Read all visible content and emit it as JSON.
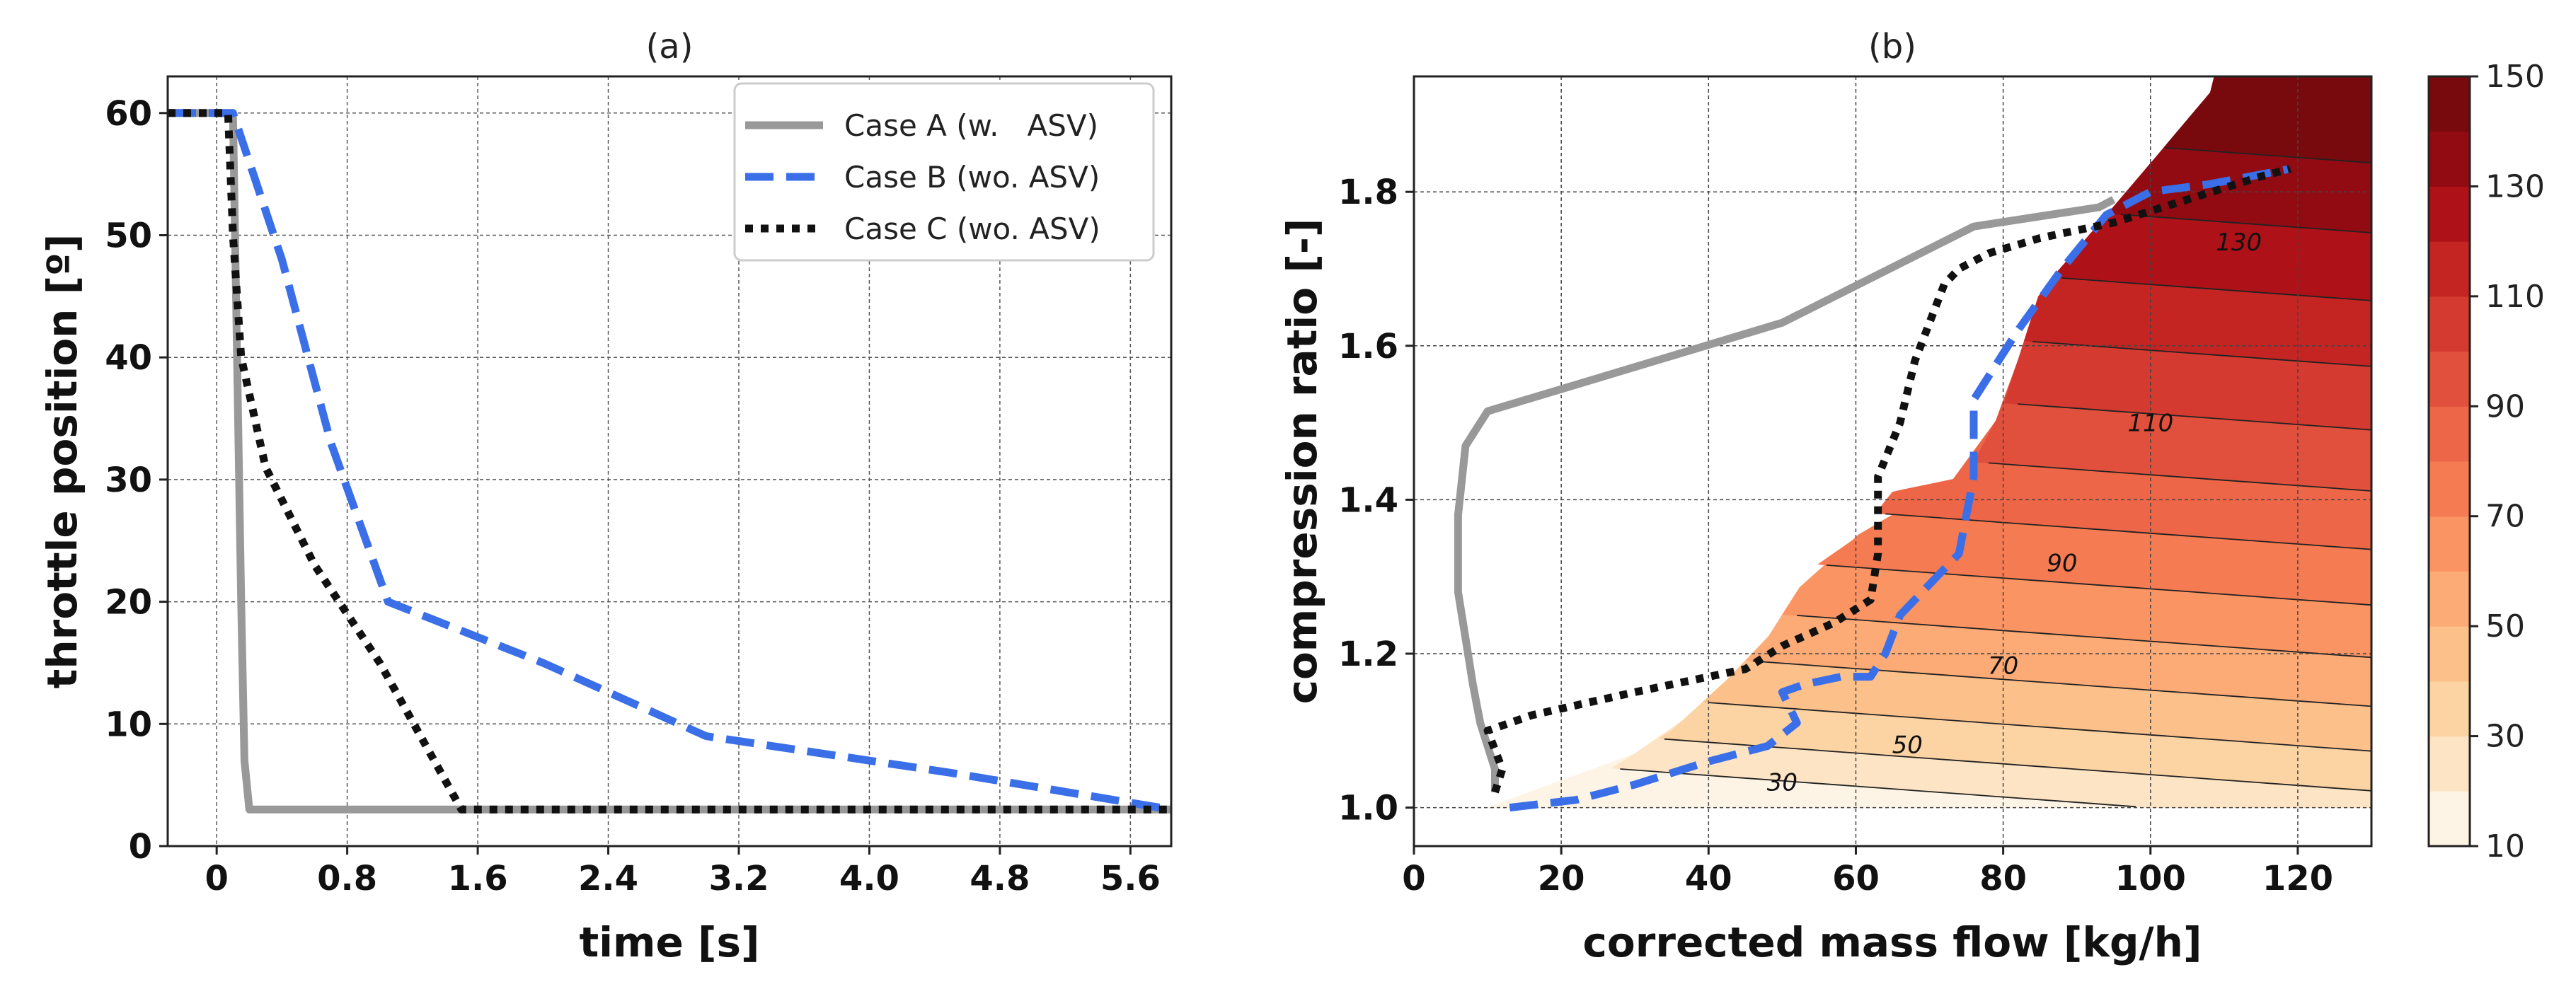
{
  "chart_data": [
    {
      "id": "a",
      "type": "line",
      "title": "(a)",
      "xlabel": "time [s]",
      "ylabel": "throttle position [º]",
      "xlim": [
        -0.3,
        5.85
      ],
      "ylim": [
        0,
        63
      ],
      "xticks": [
        0,
        0.8,
        1.6,
        2.4,
        3.2,
        4.0,
        4.8,
        5.6
      ],
      "xtick_labels": [
        "0",
        "0.8",
        "1.6",
        "2.4",
        "3.2",
        "4.0",
        "4.8",
        "5.6"
      ],
      "yticks": [
        0,
        10,
        20,
        30,
        40,
        50,
        60
      ],
      "ytick_labels": [
        "0",
        "10",
        "20",
        "30",
        "40",
        "50",
        "60"
      ],
      "grid": true,
      "legend_position": "top-right",
      "series": [
        {
          "name": "Case A (w.   ASV)",
          "style": "solid",
          "color": "#999999",
          "x": [
            -0.3,
            0.1,
            0.15,
            0.17,
            0.2,
            5.85
          ],
          "y": [
            60,
            60,
            20,
            7,
            3,
            3
          ]
        },
        {
          "name": "Case B (wo. ASV)",
          "style": "dashed",
          "color": "#3a6fe8",
          "x": [
            -0.3,
            0.1,
            0.4,
            0.7,
            1.05,
            2.0,
            3.0,
            4.5,
            5.85
          ],
          "y": [
            60,
            60,
            48,
            33,
            20,
            15,
            9,
            6,
            3
          ]
        },
        {
          "name": "Case C (wo. ASV)",
          "style": "dotted",
          "color": "#111111",
          "x": [
            -0.3,
            0.07,
            0.1,
            0.15,
            0.3,
            0.6,
            1.0,
            1.5,
            5.85
          ],
          "y": [
            60,
            60,
            50,
            40,
            31,
            23,
            15,
            3,
            3
          ]
        }
      ]
    },
    {
      "id": "b",
      "type": "contour",
      "title": "(b)",
      "xlabel": "corrected mass flow [kg/h]",
      "ylabel": "compression ratio [-]",
      "xlim": [
        0,
        130
      ],
      "ylim": [
        0.95,
        1.95
      ],
      "xticks": [
        0,
        20,
        40,
        60,
        80,
        100,
        120
      ],
      "xtick_labels": [
        "0",
        "20",
        "40",
        "60",
        "80",
        "100",
        "120"
      ],
      "yticks": [
        1.0,
        1.2,
        1.4,
        1.6,
        1.8
      ],
      "ytick_labels": [
        "1.0",
        "1.2",
        "1.4",
        "1.6",
        "1.8"
      ],
      "grid": true,
      "contour_levels": [
        10,
        20,
        30,
        40,
        50,
        60,
        70,
        80,
        90,
        100,
        110,
        120,
        130,
        140,
        150
      ],
      "level_colors": [
        "#fef4e6",
        "#fde4c4",
        "#fcd3a3",
        "#fcc08b",
        "#fcab76",
        "#fa9463",
        "#f57b52",
        "#ed6647",
        "#e1503c",
        "#d43a2f",
        "#c42422",
        "#ae1118",
        "#920a12",
        "#780a0e"
      ],
      "contour_labels": [
        {
          "value": "30",
          "x": 50,
          "y": 1.033
        },
        {
          "value": "50",
          "x": 67,
          "y": 1.082
        },
        {
          "value": "70",
          "x": 80,
          "y": 1.185
        },
        {
          "value": "90",
          "x": 88,
          "y": 1.318
        },
        {
          "value": "110",
          "x": 100,
          "y": 1.5
        },
        {
          "value": "130",
          "x": 112,
          "y": 1.735
        }
      ],
      "colorbar": {
        "min": 10,
        "max": 150,
        "ticks": [
          10,
          30,
          50,
          70,
          90,
          110,
          130,
          150
        ],
        "tick_labels": [
          "10",
          "30",
          "50",
          "70",
          "90",
          "110",
          "130",
          "150"
        ]
      },
      "surge_boundary": {
        "x": [
          10,
          25,
          35,
          43,
          48,
          54,
          60,
          65,
          75,
          80,
          85,
          95,
          110
        ],
        "y": [
          1.0,
          1.04,
          1.1,
          1.17,
          1.22,
          1.31,
          1.35,
          1.41,
          1.43,
          1.52,
          1.67,
          1.78,
          1.95
        ]
      },
      "choke_x": 130,
      "series": [
        {
          "name": "Case A (w.   ASV)",
          "style": "solid",
          "color": "#999999",
          "x": [
            95,
            93,
            76,
            50,
            10,
            7,
            6,
            6,
            7,
            8,
            9,
            10,
            11,
            11
          ],
          "y": [
            1.79,
            1.78,
            1.755,
            1.63,
            1.515,
            1.47,
            1.38,
            1.28,
            1.22,
            1.16,
            1.11,
            1.08,
            1.05,
            1.02
          ]
        },
        {
          "name": "Case B (wo. ASV)",
          "style": "dashed",
          "color": "#3a6fe8",
          "x": [
            13,
            22,
            30,
            40,
            48,
            52,
            50,
            53,
            58,
            62,
            64,
            66,
            70,
            74,
            76,
            76,
            78,
            82,
            88,
            94,
            100,
            108,
            119
          ],
          "y": [
            1.0,
            1.01,
            1.03,
            1.06,
            1.08,
            1.11,
            1.15,
            1.16,
            1.17,
            1.17,
            1.2,
            1.25,
            1.29,
            1.33,
            1.43,
            1.53,
            1.56,
            1.62,
            1.7,
            1.77,
            1.8,
            1.81,
            1.83
          ]
        },
        {
          "name": "Case C (wo. ASV)",
          "style": "dotted",
          "color": "#111111",
          "x": [
            11,
            12,
            10,
            16,
            30,
            45,
            50,
            57,
            62,
            63,
            63,
            66,
            68,
            72,
            74,
            78,
            85,
            95,
            105,
            115,
            119
          ],
          "y": [
            1.02,
            1.05,
            1.1,
            1.12,
            1.15,
            1.18,
            1.21,
            1.24,
            1.27,
            1.33,
            1.43,
            1.5,
            1.58,
            1.68,
            1.7,
            1.72,
            1.74,
            1.76,
            1.79,
            1.82,
            1.83
          ]
        }
      ]
    }
  ]
}
